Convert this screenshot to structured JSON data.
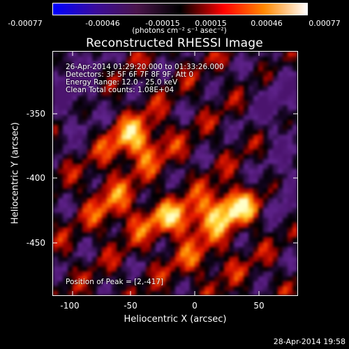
{
  "colorbar": {
    "tick_labels": [
      "-0.00077",
      "-0.00046",
      "-0.00015",
      "0.00015",
      "0.00046",
      "0.00077"
    ],
    "units_label": "(photons cm⁻² s⁻¹ asec⁻²)",
    "colors": [
      "#0000ff",
      "#3b0b9a",
      "#4a154b",
      "#000000",
      "#ff0000",
      "#ff8800",
      "#ffffff"
    ]
  },
  "title": "Reconstructed RHESSI Image",
  "annotations": {
    "time_range": "26-Apr-2014 01:29:20.000 to 01:33:26.000",
    "detectors": "Detectors: 3F 5F 6F 7F 8F 9F, Att 0",
    "energy": "Energy Range: 12.0 - 25.0 keV",
    "clean": "Clean     Total counts: 1.08E+04",
    "peak": "Position of Peak = [2,-417]"
  },
  "axes": {
    "xlabel": "Heliocentric X (arcsec)",
    "ylabel": "Heliocentric Y (arcsec)",
    "x_ticks": [
      "-100",
      "-50",
      "0",
      "50"
    ],
    "y_ticks": [
      "-350",
      "-400",
      "-450"
    ],
    "xlim": [
      -112,
      80
    ],
    "ylim": [
      -492,
      -300
    ]
  },
  "footer": {
    "timestamp": "28-Apr-2014 19:58"
  }
}
